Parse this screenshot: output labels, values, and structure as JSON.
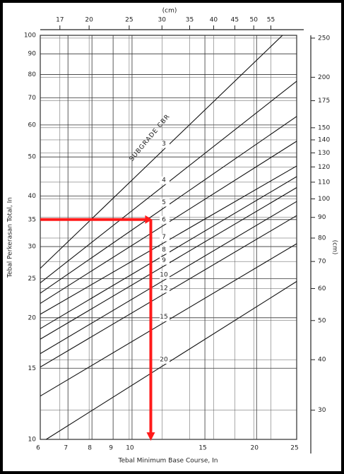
{
  "chart_data": {
    "type": "line",
    "xlabel": "Tebal Minimum Base Course, In",
    "ylabel": "Tebal Perkerasan Total, In",
    "x2label": "(cm)",
    "y2label": "(cm)",
    "curve_label": "SUBGRADE CBR",
    "log_x": true,
    "log_y": true,
    "grid": true,
    "color": "#111111",
    "xlim": [
      6,
      25
    ],
    "xticks": [
      6,
      7,
      8,
      9,
      10,
      15,
      20,
      25
    ],
    "ylim": [
      10,
      100
    ],
    "yticks": [
      10,
      15,
      20,
      25,
      30,
      35,
      40,
      50,
      60,
      70,
      80,
      90,
      100
    ],
    "x2lim": [
      15.24,
      63.5
    ],
    "x2ticks": [
      17,
      20,
      25,
      30,
      35,
      40,
      45,
      50,
      55
    ],
    "y2lim": [
      25.4,
      254
    ],
    "y2ticks": [
      30,
      40,
      50,
      60,
      70,
      80,
      90,
      100,
      110,
      120,
      130,
      140,
      150,
      175,
      200,
      250
    ],
    "series": [
      {
        "name": "3",
        "x": [
          6,
          23.1
        ],
        "values": [
          26.5,
          100
        ]
      },
      {
        "name": "4",
        "x": [
          6,
          25
        ],
        "values": [
          24.4,
          77
        ]
      },
      {
        "name": "5",
        "x": [
          6,
          25
        ],
        "values": [
          23.0,
          63
        ]
      },
      {
        "name": "6",
        "x": [
          6,
          25
        ],
        "values": [
          21.7,
          54.7
        ]
      },
      {
        "name": "7",
        "x": [
          6,
          25
        ],
        "values": [
          20.4,
          47.5
        ]
      },
      {
        "name": "8",
        "x": [
          6,
          25
        ],
        "values": [
          18.8,
          44.7
        ]
      },
      {
        "name": "9",
        "x": [
          6,
          25
        ],
        "values": [
          17.7,
          42
        ]
      },
      {
        "name": "10",
        "x": [
          6,
          25
        ],
        "values": [
          16.3,
          38.8
        ]
      },
      {
        "name": "12",
        "x": [
          6,
          25
        ],
        "values": [
          15.1,
          35.8
        ]
      },
      {
        "name": "15",
        "x": [
          6,
          25
        ],
        "values": [
          12.8,
          30.5
        ]
      },
      {
        "name": "20",
        "x": [
          6.2,
          25
        ],
        "values": [
          10,
          24.6
        ]
      }
    ],
    "example": {
      "x": 11.1,
      "y": 35,
      "color": "#ff1a1a"
    }
  }
}
